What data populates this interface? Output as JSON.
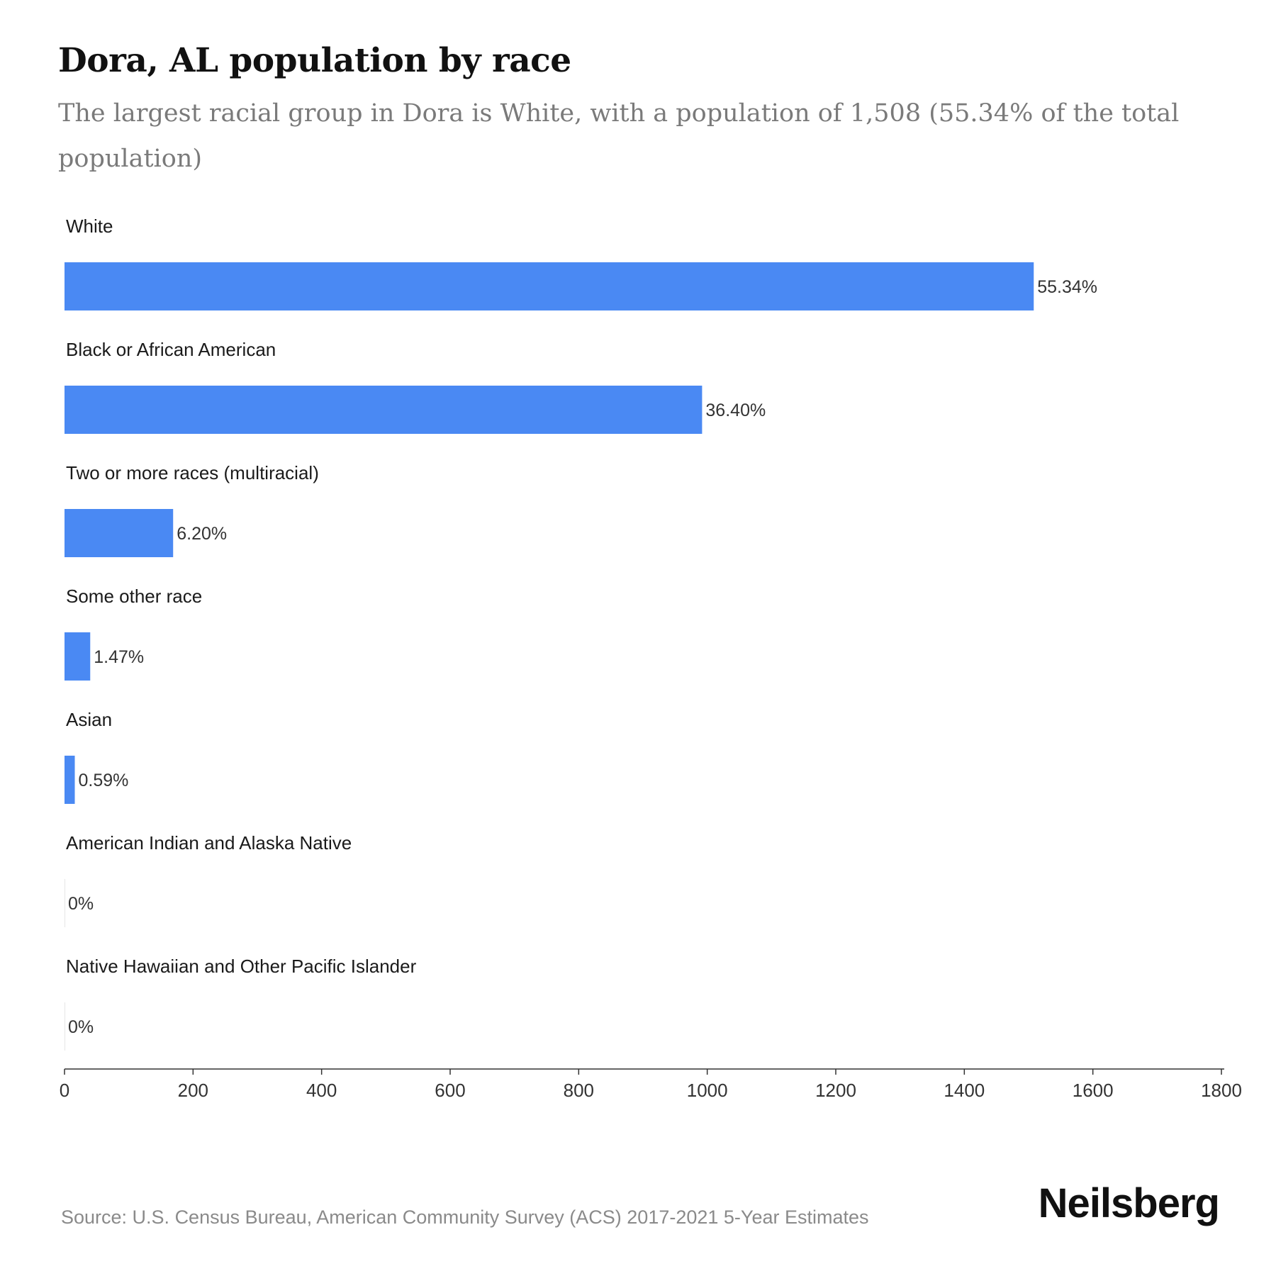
{
  "title": "Dora, AL population by race",
  "subtitle": "The largest racial group in Dora is White, with a population of 1,508 (55.34% of the total population)",
  "source": "Source: U.S. Census Bureau, American Community Survey (ACS) 2017-2021 5-Year Estimates",
  "brand": "Neilsberg",
  "colors": {
    "bar": "#4a89f3",
    "text": "#1a1a1a",
    "axis": "#333333"
  },
  "chart_data": {
    "type": "bar",
    "orientation": "horizontal",
    "categories": [
      "White",
      "Black or African American",
      "Two or more races (multiracial)",
      "Some other race",
      "Asian",
      "American Indian and Alaska Native",
      "Native Hawaiian and Other Pacific Islander"
    ],
    "values": [
      1508,
      992,
      169,
      40,
      16,
      0,
      0
    ],
    "data_labels": [
      "55.34%",
      "36.40%",
      "6.20%",
      "1.47%",
      "0.59%",
      "0%",
      "0%"
    ],
    "xlim": [
      0,
      1800
    ],
    "xticks": [
      "0",
      "200",
      "400",
      "600",
      "800",
      "1000",
      "1200",
      "1400",
      "1600",
      "1800"
    ],
    "grid": false,
    "legend": "none"
  }
}
